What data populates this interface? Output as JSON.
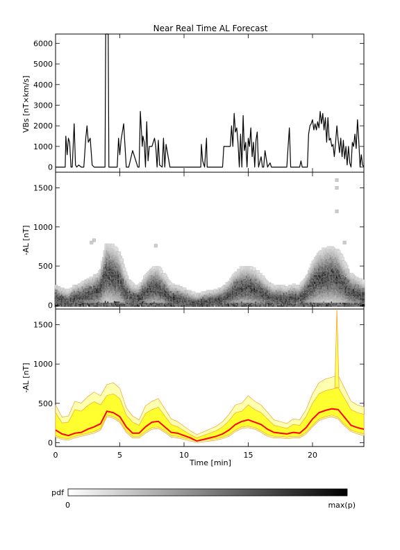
{
  "chart_data": [
    {
      "type": "line",
      "title": "Near Real Time AL Forecast",
      "xlabel": "",
      "ylabel": "VBs [nT×km/s]",
      "xlim": [
        0,
        24
      ],
      "ylim": [
        -250,
        6450
      ],
      "yticks": [
        0,
        1000,
        2000,
        3000,
        4000,
        5000,
        6000
      ],
      "series": [
        {
          "x": [
            0,
            0.5,
            0.75,
            0.8,
            0.9,
            1.0,
            1.1,
            1.2,
            1.3,
            1.45,
            1.55,
            1.65,
            1.8,
            2.0,
            2.2,
            2.35,
            2.45,
            2.55,
            2.7,
            2.85,
            3.0,
            3.2,
            3.6,
            3.85,
            3.9,
            4.0,
            4.1,
            4.15,
            4.3,
            4.6,
            4.8,
            4.9,
            5.0,
            5.1,
            5.3,
            5.5,
            5.6,
            5.7,
            6.0,
            6.4,
            6.5,
            6.6,
            6.75,
            6.8,
            6.9,
            7.0,
            7.1,
            7.2,
            7.3,
            7.5,
            7.7,
            7.8,
            7.9,
            8.0,
            8.1,
            8.3,
            8.4,
            8.5,
            8.6,
            8.9,
            9.0,
            11.2,
            11.3,
            11.35,
            11.45,
            11.6,
            11.75,
            11.8,
            12.0,
            13.0,
            13.1,
            13.2,
            13.6,
            13.7,
            13.8,
            13.9,
            14.0,
            14.1,
            14.2,
            14.3,
            14.4,
            14.5,
            14.6,
            14.7,
            14.8,
            14.9,
            15.0,
            15.1,
            15.2,
            15.3,
            15.4,
            15.5,
            15.6,
            15.7,
            15.8,
            16.0,
            16.1,
            16.2,
            16.3,
            16.5,
            16.6,
            16.7,
            16.8,
            17.0,
            18.0,
            18.1,
            18.2,
            18.3,
            18.4,
            18.6,
            19.0,
            19.1,
            19.2,
            19.5,
            19.6,
            19.7,
            19.8,
            19.9,
            20.0,
            20.1,
            20.2,
            20.3,
            20.4,
            20.5,
            20.6,
            20.7,
            20.8,
            20.9,
            21.0,
            21.1,
            21.2,
            21.3,
            21.4,
            21.5,
            21.6,
            21.7,
            21.8,
            21.9,
            22.0,
            22.1,
            22.2,
            22.3,
            22.4,
            22.5,
            22.6,
            22.7,
            22.8,
            22.9,
            23.0,
            23.1,
            23.2,
            23.3,
            23.4,
            23.5,
            23.6,
            23.7,
            23.8,
            23.9,
            24.0
          ],
          "y": [
            0,
            0,
            0,
            1500,
            600,
            1400,
            1200,
            0,
            0,
            2100,
            100,
            0,
            100,
            0,
            0,
            1400,
            2000,
            1200,
            1400,
            100,
            0,
            0,
            0,
            0,
            6450,
            6450,
            6450,
            0,
            0,
            0,
            0,
            1400,
            600,
            1300,
            2100,
            0,
            0,
            0,
            800,
            0,
            0,
            2700,
            1000,
            1500,
            1200,
            0,
            2200,
            300,
            1000,
            1000,
            1400,
            1000,
            0,
            1300,
            100,
            0,
            1400,
            0,
            1100,
            0,
            0,
            0,
            0,
            1100,
            300,
            0,
            1400,
            0,
            0,
            0,
            1000,
            1000,
            1000,
            2000,
            1000,
            2600,
            1700,
            1900,
            1200,
            0,
            1600,
            0,
            2500,
            800,
            1200,
            0,
            1400,
            1000,
            1900,
            500,
            1200,
            0,
            1300,
            1700,
            0,
            500,
            0,
            0,
            800,
            0,
            100,
            200,
            0,
            0,
            0,
            1000,
            1900,
            0,
            0,
            0,
            0,
            300,
            0,
            0,
            0,
            1600,
            2000,
            2100,
            2300,
            1800,
            2100,
            1800,
            2200,
            1900,
            2700,
            2100,
            2600,
            1800,
            2400,
            1200,
            2400,
            1300,
            1400,
            1000,
            1100,
            500,
            1200,
            2000,
            1300,
            700,
            1400,
            500,
            1300,
            400,
            1000,
            100,
            1000,
            200,
            0,
            1200,
            1000,
            1600,
            900,
            2300,
            1300,
            0,
            600,
            100,
            0
          ]
        }
      ]
    },
    {
      "type": "heatmap",
      "xlabel": "",
      "ylabel": "-AL [nT]",
      "xlim": [
        0,
        24
      ],
      "ylim": [
        -50,
        1700
      ],
      "yticks": [
        0,
        500,
        1000,
        1500
      ],
      "colorscale": [
        "#ffffff",
        "#000000"
      ],
      "center_curve": {
        "x": [
          0,
          0.5,
          1,
          1.5,
          2,
          2.5,
          3,
          3.5,
          4,
          4.5,
          5,
          5.5,
          6,
          6.5,
          7,
          7.5,
          8,
          8.5,
          9,
          9.5,
          10,
          10.5,
          11,
          11.5,
          12,
          12.5,
          13,
          13.5,
          14,
          14.5,
          15,
          15.5,
          16,
          16.5,
          17,
          17.5,
          18,
          18.5,
          19,
          19.5,
          20,
          20.5,
          21,
          21.5,
          22,
          22.5,
          23,
          23.5,
          24
        ],
        "y": [
          100,
          70,
          55,
          90,
          110,
          140,
          160,
          200,
          400,
          380,
          330,
          170,
          100,
          90,
          160,
          220,
          230,
          170,
          100,
          90,
          70,
          50,
          30,
          40,
          55,
          60,
          80,
          120,
          180,
          220,
          230,
          210,
          170,
          120,
          90,
          90,
          80,
          95,
          90,
          150,
          250,
          330,
          360,
          380,
          350,
          260,
          180,
          150,
          120
        ]
      },
      "outliers": [
        {
          "x": 21.9,
          "y": 1600
        },
        {
          "x": 21.9,
          "y": 1500
        },
        {
          "x": 21.9,
          "y": 1200
        },
        {
          "x": 3.0,
          "y": 830
        },
        {
          "x": 2.8,
          "y": 800
        },
        {
          "x": 7.8,
          "y": 760
        },
        {
          "x": 22.5,
          "y": 800
        }
      ]
    },
    {
      "type": "area",
      "xlabel": "Time [min]",
      "ylabel": "-AL [nT]",
      "xlim": [
        0,
        24
      ],
      "ylim": [
        -50,
        1700
      ],
      "xticks": [
        0,
        5,
        10,
        15,
        20
      ],
      "yticks": [
        0,
        500,
        1000,
        1500
      ],
      "x": [
        0,
        0.5,
        1,
        1.5,
        2,
        2.5,
        3,
        3.5,
        4,
        4.5,
        5,
        5.5,
        6,
        6.5,
        7,
        7.5,
        8,
        8.5,
        9,
        9.5,
        10,
        10.5,
        11,
        11.5,
        12,
        12.5,
        13,
        13.5,
        14,
        14.5,
        15,
        15.5,
        16,
        16.5,
        17,
        17.5,
        18,
        18.5,
        19,
        19.5,
        20,
        20.5,
        21,
        21.5,
        22,
        22.5,
        23,
        23.5,
        24
      ],
      "series": [
        {
          "color": "#ffff30",
          "lower": [
            90,
            60,
            50,
            80,
            100,
            120,
            140,
            180,
            350,
            330,
            280,
            150,
            80,
            80,
            140,
            190,
            200,
            150,
            90,
            80,
            60,
            40,
            20,
            30,
            40,
            50,
            70,
            100,
            160,
            200,
            210,
            190,
            150,
            100,
            80,
            80,
            70,
            80,
            80,
            130,
            220,
            300,
            330,
            350,
            320,
            230,
            160,
            130,
            110
          ],
          "upper": [
            380,
            250,
            260,
            420,
            400,
            470,
            520,
            480,
            600,
            620,
            560,
            350,
            260,
            220,
            370,
            420,
            450,
            340,
            230,
            200,
            150,
            100,
            60,
            90,
            120,
            150,
            200,
            280,
            380,
            400,
            480,
            420,
            380,
            300,
            220,
            200,
            180,
            230,
            220,
            330,
            500,
            620,
            660,
            680,
            700,
            560,
            420,
            380,
            360
          ]
        },
        {
          "color": "#ff0000",
          "values": [
            160,
            110,
            90,
            120,
            130,
            170,
            200,
            240,
            400,
            380,
            330,
            200,
            120,
            120,
            200,
            260,
            270,
            200,
            130,
            120,
            90,
            60,
            20,
            40,
            60,
            80,
            110,
            160,
            230,
            270,
            290,
            260,
            230,
            170,
            130,
            120,
            110,
            130,
            120,
            190,
            300,
            380,
            410,
            430,
            420,
            320,
            220,
            190,
            170
          ]
        }
      ],
      "spike": {
        "x": 21.9,
        "y": 1700
      }
    }
  ],
  "colorbar": {
    "label": "pdf",
    "min_label": "0",
    "max_label": "max(p)"
  }
}
